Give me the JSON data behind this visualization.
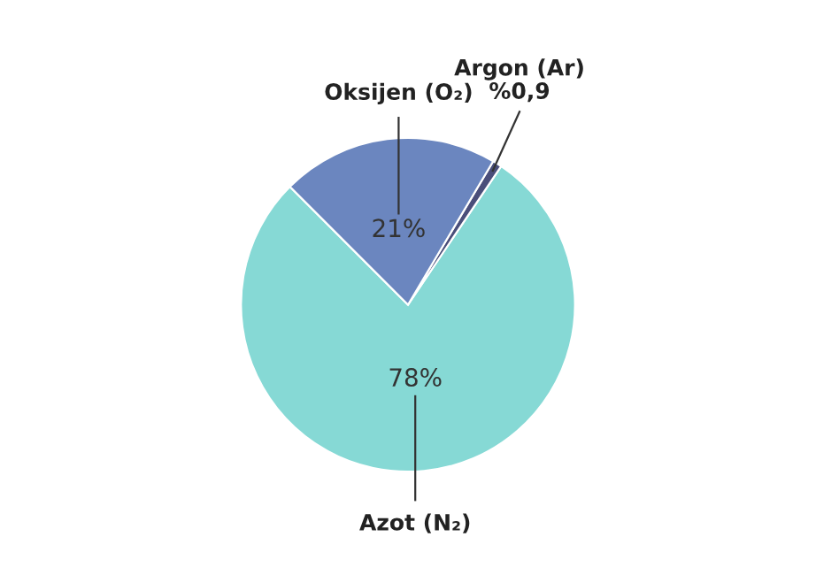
{
  "chart_data": {
    "type": "pie",
    "categories": [
      "Azot (N₂)",
      "Argon (Ar)",
      "Oksijen (O₂)"
    ],
    "values": [
      78,
      0.9,
      21
    ],
    "value_labels": [
      "78%",
      "%0,9",
      "21%"
    ],
    "colors": [
      "#86d9d5",
      "#4a4e7a",
      "#6b86bf"
    ]
  }
}
